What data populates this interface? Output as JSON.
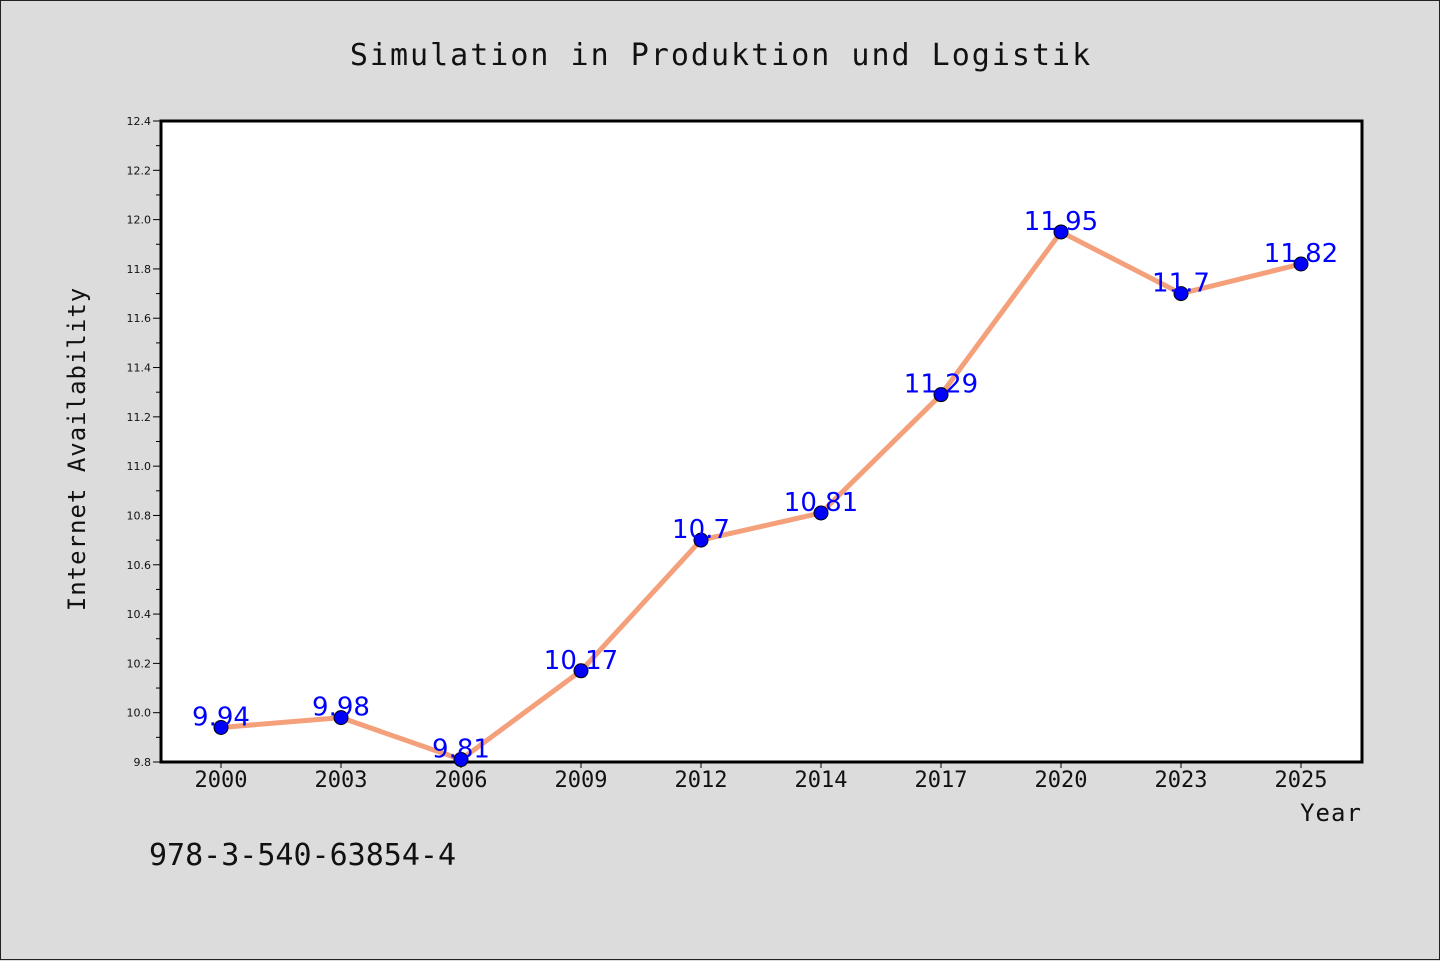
{
  "chart_data": {
    "type": "line",
    "title": "Simulation in Produktion und Logistik",
    "xlabel": "Year",
    "ylabel": "Internet Availability",
    "x": [
      "2000",
      "2003",
      "2006",
      "2009",
      "2012",
      "2014",
      "2017",
      "2020",
      "2023",
      "2025"
    ],
    "values": [
      9.94,
      9.98,
      9.81,
      10.17,
      10.7,
      10.81,
      11.29,
      11.95,
      11.7,
      11.82
    ],
    "data_labels": [
      "9.94",
      "9.98",
      "9.81",
      "10.17",
      "10.7",
      "10.81",
      "11.29",
      "11.95",
      "11.7",
      "11.82"
    ],
    "ylim": [
      9.8,
      12.4
    ],
    "yticks": [
      "9.8",
      "10.0",
      "10.2",
      "10.4",
      "10.6",
      "10.8",
      "11.0",
      "11.2",
      "11.4",
      "11.6",
      "11.8",
      "12.0",
      "12.2",
      "12.4"
    ],
    "grid": false,
    "line_color": "#f4a07a",
    "marker_color": "#0000ff",
    "label_color": "#0000ff"
  },
  "footer_text": "978-3-540-63854-4"
}
